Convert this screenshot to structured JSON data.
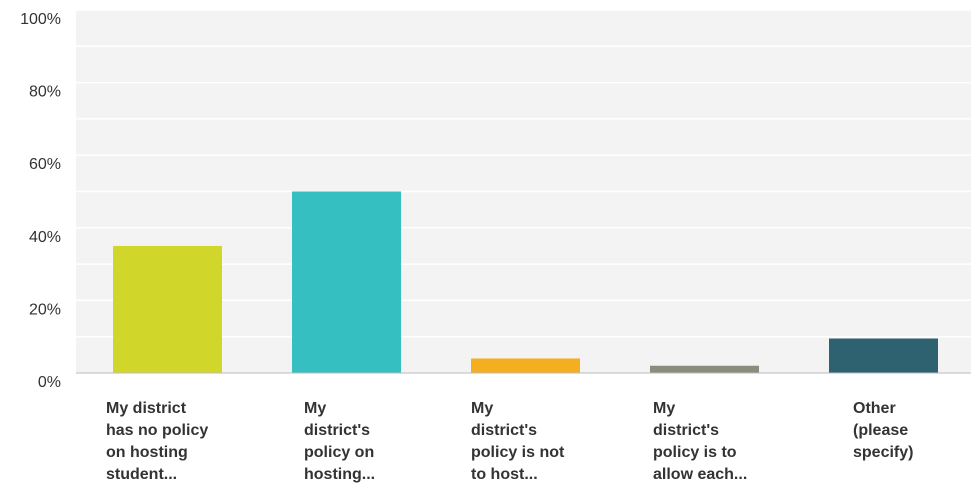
{
  "chart_data": {
    "type": "bar",
    "categories": [
      [
        "My district",
        "has no policy",
        "on hosting",
        "student..."
      ],
      [
        "My",
        "district's",
        "policy on",
        "hosting..."
      ],
      [
        "My",
        "district's",
        "policy is not",
        "to host..."
      ],
      [
        "My",
        "district's",
        "policy is to",
        "allow each..."
      ],
      [
        "Other",
        "(please",
        "specify)"
      ]
    ],
    "values": [
      35,
      50,
      4,
      2,
      9.5
    ],
    "colors": [
      "#d0d62a",
      "#35bfc0",
      "#f5ae20",
      "#8a8c7c",
      "#2f6270"
    ],
    "ylim": [
      0,
      100
    ],
    "yticks": [
      "0%",
      "20%",
      "40%",
      "60%",
      "80%",
      "100%"
    ],
    "yticks_values": [
      0,
      20,
      40,
      60,
      80,
      100
    ],
    "grid": true,
    "plot_background": "#f3f3f3"
  }
}
